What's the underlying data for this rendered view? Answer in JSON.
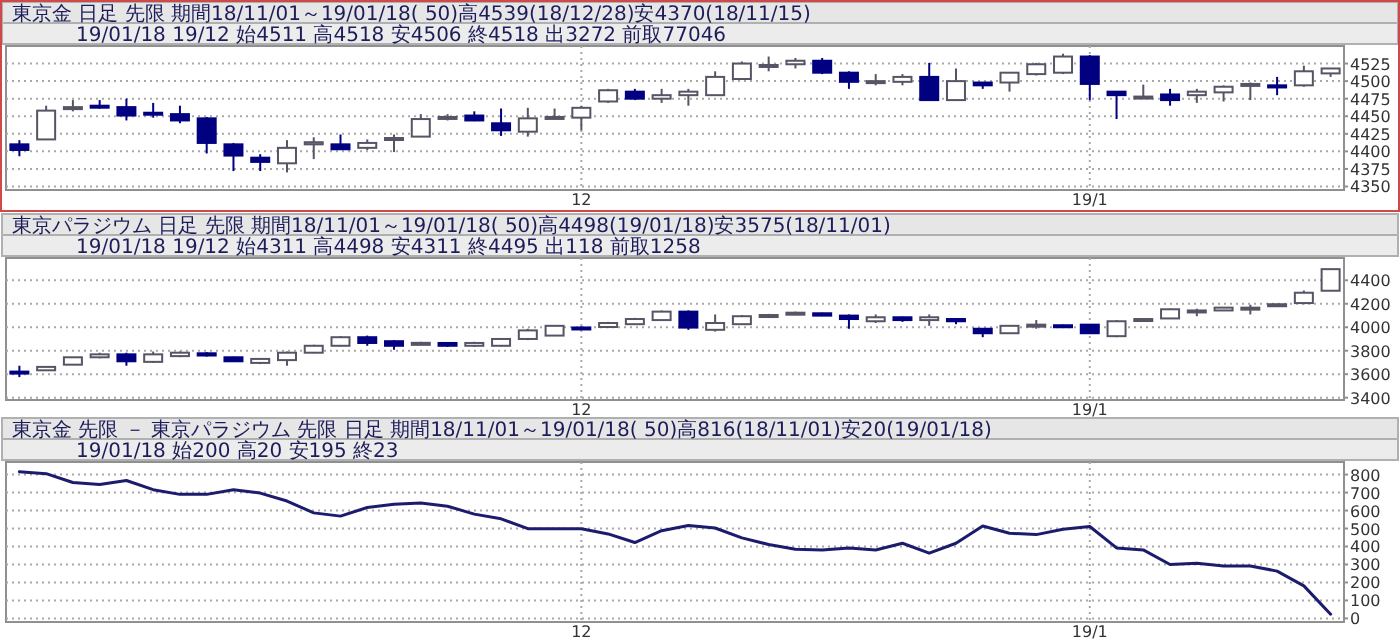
{
  "chart_data": [
    {
      "type": "candlestick",
      "title": "東京金 日足 先限 期間18/11/01～19/01/18( 50)高4539(18/12/28)安4370(18/11/15)",
      "subtitle": "19/01/18 19/12 始4511 高4518 安4506 終4518 出3272 前取77046",
      "categories": [
        null,
        null,
        null,
        null,
        null,
        null,
        null,
        null,
        null,
        null,
        null,
        null,
        null,
        null,
        null,
        null,
        null,
        null,
        null,
        null,
        null,
        "12",
        null,
        null,
        null,
        null,
        null,
        null,
        null,
        null,
        null,
        null,
        null,
        null,
        null,
        null,
        null,
        null,
        null,
        null,
        "19/1",
        null,
        null,
        null,
        null,
        null,
        null,
        null,
        null,
        null
      ],
      "ohlc": [
        [
          4410,
          4416,
          4393,
          4402
        ],
        [
          4417,
          4465,
          4417,
          4458
        ],
        [
          4462,
          4473,
          4457,
          4463
        ],
        [
          4465,
          4473,
          4461,
          4464
        ],
        [
          4463,
          4475,
          4444,
          4451
        ],
        [
          4455,
          4469,
          4448,
          4454
        ],
        [
          4453,
          4465,
          4440,
          4444
        ],
        [
          4447,
          4449,
          4397,
          4412
        ],
        [
          4410,
          4412,
          4372,
          4394
        ],
        [
          4391,
          4396,
          4372,
          4385
        ],
        [
          4383,
          4416,
          4370,
          4405
        ],
        [
          4410,
          4420,
          4389,
          4413
        ],
        [
          4410,
          4424,
          4402,
          4403
        ],
        [
          4405,
          4417,
          4402,
          4412
        ],
        [
          4418,
          4424,
          4399,
          4419
        ],
        [
          4421,
          4453,
          4421,
          4446
        ],
        [
          4448,
          4453,
          4444,
          4449
        ],
        [
          4451,
          4457,
          4443,
          4444
        ],
        [
          4440,
          4461,
          4422,
          4430
        ],
        [
          4428,
          4462,
          4421,
          4447
        ],
        [
          4448,
          4461,
          4446,
          4449
        ],
        [
          4448,
          4465,
          4430,
          4462
        ],
        [
          4471,
          4489,
          4469,
          4487
        ],
        [
          4485,
          4489,
          4473,
          4475
        ],
        [
          4475,
          4489,
          4469,
          4480
        ],
        [
          4480,
          4489,
          4465,
          4485
        ],
        [
          4480,
          4514,
          4480,
          4506
        ],
        [
          4503,
          4528,
          4503,
          4525
        ],
        [
          4522,
          4535,
          4514,
          4523
        ],
        [
          4524,
          4533,
          4518,
          4529
        ],
        [
          4529,
          4533,
          4510,
          4512
        ],
        [
          4512,
          4514,
          4489,
          4499
        ],
        [
          4499,
          4510,
          4494,
          4500
        ],
        [
          4499,
          4510,
          4494,
          4506
        ],
        [
          4506,
          4526,
          4473,
          4473
        ],
        [
          4473,
          4518,
          4473,
          4500
        ],
        [
          4498,
          4498,
          4489,
          4494
        ],
        [
          4498,
          4512,
          4485,
          4512
        ],
        [
          4510,
          4526,
          4508,
          4524
        ],
        [
          4512,
          4539,
          4510,
          4535
        ],
        [
          4535,
          4537,
          4473,
          4496
        ],
        [
          4485,
          4485,
          4446,
          4480
        ],
        [
          4477,
          4495,
          4476,
          4478
        ],
        [
          4481,
          4489,
          4465,
          4473
        ],
        [
          4480,
          4489,
          4469,
          4485
        ],
        [
          4484,
          4494,
          4471,
          4492
        ],
        [
          4495,
          4498,
          4473,
          4496
        ],
        [
          4494,
          4506,
          4480,
          4491
        ],
        [
          4494,
          4522,
          4492,
          4514
        ],
        [
          4511,
          4518,
          4506,
          4518
        ]
      ],
      "ylim": [
        4345,
        4550
      ],
      "yticks": [
        4350,
        4375,
        4400,
        4425,
        4450,
        4475,
        4500,
        4525
      ],
      "grid": true
    },
    {
      "type": "candlestick",
      "title": "東京パラジウム 日足 先限 期間18/11/01～19/01/18( 50)高4498(19/01/18)安3575(18/11/01)",
      "subtitle": "19/01/18 19/12 始4311 高4498 安4311 終4495 出118 前取1258",
      "categories": [
        null,
        null,
        null,
        null,
        null,
        null,
        null,
        null,
        null,
        null,
        null,
        null,
        null,
        null,
        null,
        null,
        null,
        null,
        null,
        null,
        null,
        "12",
        null,
        null,
        null,
        null,
        null,
        null,
        null,
        null,
        null,
        null,
        null,
        null,
        null,
        null,
        null,
        null,
        null,
        null,
        "19/1",
        null,
        null,
        null,
        null,
        null,
        null,
        null,
        null,
        null
      ],
      "ohlc": [
        [
          3622,
          3672,
          3575,
          3618
        ],
        [
          3633,
          3662,
          3633,
          3662
        ],
        [
          3681,
          3744,
          3681,
          3744
        ],
        [
          3744,
          3783,
          3735,
          3769
        ],
        [
          3769,
          3783,
          3672,
          3710
        ],
        [
          3705,
          3793,
          3696,
          3769
        ],
        [
          3754,
          3793,
          3745,
          3783
        ],
        [
          3778,
          3788,
          3750,
          3759
        ],
        [
          3744,
          3749,
          3705,
          3710
        ],
        [
          3696,
          3735,
          3686,
          3730
        ],
        [
          3720,
          3793,
          3672,
          3783
        ],
        [
          3783,
          3851,
          3778,
          3842
        ],
        [
          3842,
          3925,
          3837,
          3915
        ],
        [
          3915,
          3929,
          3842,
          3866
        ],
        [
          3881,
          3890,
          3808,
          3842
        ],
        [
          3866,
          3876,
          3856,
          3867
        ],
        [
          3866,
          3871,
          3832,
          3842
        ],
        [
          3842,
          3876,
          3832,
          3866
        ],
        [
          3842,
          3905,
          3837,
          3900
        ],
        [
          3900,
          3987,
          3890,
          3973
        ],
        [
          3929,
          4017,
          3925,
          4012
        ],
        [
          3998,
          4007,
          3978,
          3997
        ],
        [
          4002,
          4046,
          3993,
          4036
        ],
        [
          4026,
          4080,
          4022,
          4070
        ],
        [
          4061,
          4143,
          4056,
          4133
        ],
        [
          4133,
          4143,
          3978,
          3997
        ],
        [
          3978,
          4109,
          3963,
          4036
        ],
        [
          4026,
          4104,
          4022,
          4094
        ],
        [
          4099,
          4114,
          4095,
          4104
        ],
        [
          4122,
          4133,
          4119,
          4124
        ],
        [
          4119,
          4124,
          4095,
          4099
        ],
        [
          4099,
          4109,
          3987,
          4070
        ],
        [
          4051,
          4109,
          4036,
          4085
        ],
        [
          4085,
          4090,
          4046,
          4061
        ],
        [
          4061,
          4109,
          4012,
          4085
        ],
        [
          4070,
          4070,
          4026,
          4051
        ],
        [
          3987,
          3987,
          3915,
          3949
        ],
        [
          3949,
          4017,
          3944,
          4012
        ],
        [
          4017,
          4061,
          3987,
          4022
        ],
        [
          4017,
          4022,
          4002,
          4012
        ],
        [
          4022,
          4026,
          3944,
          3949
        ],
        [
          3924,
          4061,
          3915,
          4051
        ],
        [
          4066,
          4075,
          4061,
          4070
        ],
        [
          4075,
          4158,
          4070,
          4153
        ],
        [
          4141,
          4158,
          4094,
          4143
        ],
        [
          4143,
          4172,
          4138,
          4167
        ],
        [
          4165,
          4192,
          4109,
          4167
        ],
        [
          4182,
          4201,
          4177,
          4196
        ],
        [
          4206,
          4313,
          4196,
          4294
        ],
        [
          4311,
          4498,
          4311,
          4495
        ]
      ],
      "ylim": [
        3380,
        4590
      ],
      "yticks": [
        3400,
        3600,
        3800,
        4000,
        4200,
        4400
      ],
      "grid": true
    },
    {
      "type": "line",
      "title": "東京金 先限 － 東京パラジウム 先限 日足 期間18/11/01～19/01/18( 50)高816(18/11/01)安20(19/01/18)",
      "subtitle": "19/01/18 始200 高20 安195 終23",
      "categories": [
        null,
        null,
        null,
        null,
        null,
        null,
        null,
        null,
        null,
        null,
        null,
        null,
        null,
        null,
        null,
        null,
        null,
        null,
        null,
        null,
        null,
        "12",
        null,
        null,
        null,
        null,
        null,
        null,
        null,
        null,
        null,
        null,
        null,
        null,
        null,
        null,
        null,
        null,
        null,
        null,
        "19/1",
        null,
        null,
        null,
        null,
        null,
        null,
        null,
        null,
        null
      ],
      "values": [
        816,
        805,
        756,
        745,
        767,
        716,
        690,
        690,
        716,
        697,
        653,
        587,
        569,
        617,
        635,
        642,
        624,
        580,
        554,
        499,
        499,
        499,
        470,
        422,
        488,
        517,
        503,
        448,
        411,
        385,
        381,
        392,
        381,
        418,
        363,
        418,
        514,
        474,
        466,
        496,
        511,
        392,
        381,
        300,
        307,
        292,
        292,
        263,
        181,
        23
      ],
      "color": "#1c1c6e",
      "ylim": [
        -20,
        870
      ],
      "yticks": [
        0,
        100,
        200,
        300,
        400,
        500,
        600,
        700,
        800
      ],
      "grid": true
    }
  ]
}
